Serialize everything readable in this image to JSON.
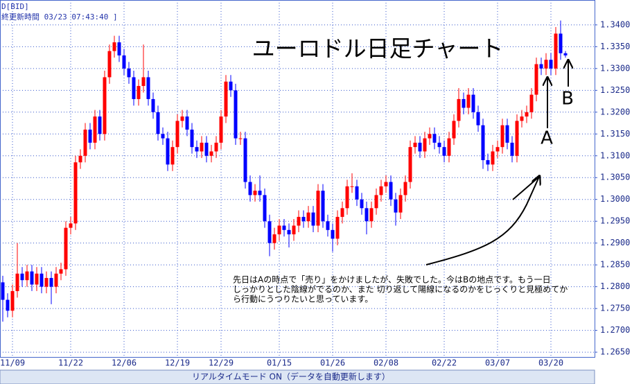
{
  "chart_data": {
    "type": "candlestick",
    "header": "D[BID]",
    "timestamp": "終更新時間 03/23 07:43:40 ]",
    "title": "ユーロドル日足チャート",
    "annotation_lines": [
      "先日はAの時点で「売り」をかけましたが、失敗でした。今はBの地点です。もう一日",
      "しっかりとした陰線がでるのか、また 切り返して陽線になるのかをじっくりと見極めてか",
      "ら行動にうつりたいと思っています。"
    ],
    "marker_a": "A",
    "marker_b": "B",
    "footer": "リアルタイムモード ON（データを自動更新します）",
    "up_color": "#ff0000",
    "down_color": "#0000ff",
    "grid": true,
    "ylim": [
      1.2639,
      1.3457
    ],
    "yticks": [
      {
        "value": 1.265,
        "label": "1.2650"
      },
      {
        "value": 1.27,
        "label": "1.2700"
      },
      {
        "value": 1.275,
        "label": "1.2750"
      },
      {
        "value": 1.28,
        "label": "1.2800"
      },
      {
        "value": 1.285,
        "label": "1.2850"
      },
      {
        "value": 1.29,
        "label": "1.2900"
      },
      {
        "value": 1.295,
        "label": "1.2950"
      },
      {
        "value": 1.3,
        "label": "1.3000"
      },
      {
        "value": 1.305,
        "label": "1.3050"
      },
      {
        "value": 1.31,
        "label": "1.3100"
      },
      {
        "value": 1.315,
        "label": "1.3150"
      },
      {
        "value": 1.32,
        "label": "1.3200"
      },
      {
        "value": 1.325,
        "label": "1.3250"
      },
      {
        "value": 1.33,
        "label": "1.3300"
      },
      {
        "value": 1.335,
        "label": "1.3350"
      },
      {
        "value": 1.34,
        "label": "1.3400"
      }
    ],
    "categories": [
      null,
      null,
      "11/09",
      null,
      null,
      null,
      null,
      null,
      null,
      null,
      null,
      null,
      null,
      null,
      "11/22",
      null,
      null,
      null,
      null,
      null,
      null,
      null,
      null,
      null,
      null,
      "12/06",
      null,
      null,
      null,
      null,
      null,
      null,
      null,
      null,
      null,
      null,
      "12/19",
      null,
      null,
      null,
      null,
      null,
      null,
      null,
      null,
      "12/29",
      null,
      null,
      null,
      null,
      null,
      null,
      null,
      null,
      null,
      null,
      null,
      "01/15",
      null,
      null,
      null,
      null,
      null,
      null,
      null,
      null,
      null,
      null,
      "01/26",
      null,
      null,
      null,
      null,
      null,
      null,
      null,
      null,
      null,
      null,
      "02/08",
      null,
      null,
      null,
      null,
      null,
      null,
      null,
      null,
      null,
      null,
      null,
      "02/22",
      null,
      null,
      null,
      null,
      null,
      null,
      null,
      null,
      null,
      null,
      "03/07",
      null,
      null,
      null,
      null,
      null,
      null,
      null,
      null,
      null,
      null,
      "03/20",
      null,
      null,
      null
    ],
    "open": [
      1.281,
      1.277,
      1.2745,
      1.279,
      1.283,
      1.2815,
      1.2835,
      1.2805,
      1.283,
      1.28,
      1.282,
      1.28,
      1.283,
      1.284,
      1.2935,
      1.2945,
      1.3085,
      1.31,
      1.316,
      1.313,
      1.319,
      1.315,
      1.328,
      1.334,
      1.336,
      1.333,
      1.33,
      1.328,
      1.323,
      1.326,
      1.328,
      1.323,
      1.32,
      1.315,
      1.314,
      1.308,
      1.312,
      1.318,
      1.319,
      1.316,
      1.312,
      1.311,
      1.313,
      1.31,
      1.311,
      1.313,
      1.319,
      1.327,
      1.325,
      1.314,
      1.314,
      1.304,
      1.301,
      1.302,
      1.301,
      1.295,
      1.29,
      1.292,
      1.294,
      1.293,
      1.292,
      1.294,
      1.296,
      1.295,
      1.297,
      1.294,
      1.302,
      1.295,
      1.293,
      1.291,
      1.296,
      1.298,
      1.303,
      1.303,
      1.3,
      1.298,
      1.295,
      1.298,
      1.301,
      1.303,
      1.304,
      1.3,
      1.297,
      1.301,
      1.304,
      1.312,
      1.313,
      1.311,
      1.314,
      1.315,
      1.313,
      1.312,
      1.31,
      1.314,
      1.318,
      1.323,
      1.321,
      1.324,
      1.32,
      1.317,
      1.309,
      1.308,
      1.311,
      1.312,
      1.317,
      1.313,
      1.31,
      1.318,
      1.319,
      1.32,
      1.324,
      1.331,
      1.33,
      1.332,
      1.33,
      1.338,
      1.3335
    ],
    "high": [
      1.2825,
      1.2785,
      1.2805,
      1.29,
      1.2845,
      1.285,
      1.285,
      1.2845,
      1.2845,
      1.2835,
      1.2835,
      1.2845,
      1.2855,
      1.295,
      1.296,
      1.31,
      1.3115,
      1.3175,
      1.3175,
      1.3205,
      1.3205,
      1.3295,
      1.3355,
      1.3375,
      1.3375,
      1.3345,
      1.3315,
      1.3295,
      1.3275,
      1.3355,
      1.3295,
      1.3245,
      1.3215,
      1.3165,
      1.3155,
      1.3135,
      1.3195,
      1.3205,
      1.3205,
      1.3175,
      1.3135,
      1.3145,
      1.3145,
      1.3125,
      1.3145,
      1.3205,
      1.3285,
      1.3285,
      1.3265,
      1.3155,
      1.3155,
      1.3055,
      1.3035,
      1.3055,
      1.3025,
      1.2965,
      1.2935,
      1.2955,
      1.2955,
      1.2945,
      1.2955,
      1.2975,
      1.2975,
      1.2985,
      1.2985,
      1.3035,
      1.3035,
      1.2965,
      1.2945,
      1.2975,
      1.2995,
      1.3045,
      1.306,
      1.3045,
      1.3015,
      1.2995,
      1.2995,
      1.3025,
      1.3045,
      1.3055,
      1.3055,
      1.3015,
      1.3025,
      1.3055,
      1.3135,
      1.3145,
      1.3145,
      1.3155,
      1.3165,
      1.3165,
      1.3145,
      1.3135,
      1.3155,
      1.3195,
      1.3255,
      1.3245,
      1.3255,
      1.3255,
      1.3215,
      1.3185,
      1.3105,
      1.3125,
      1.3135,
      1.3185,
      1.3185,
      1.3145,
      1.3195,
      1.3205,
      1.3215,
      1.3255,
      1.3325,
      1.3325,
      1.3335,
      1.3335,
      1.3395,
      1.341,
      1.334
    ],
    "low": [
      1.272,
      1.273,
      1.273,
      1.2775,
      1.28,
      1.28,
      1.279,
      1.279,
      1.2785,
      1.2785,
      1.276,
      1.2785,
      1.2815,
      1.2825,
      1.292,
      1.293,
      1.307,
      1.3085,
      1.3115,
      1.3115,
      1.3135,
      1.3135,
      1.3265,
      1.3325,
      1.3315,
      1.3285,
      1.3265,
      1.3215,
      1.3215,
      1.3245,
      1.3215,
      1.3185,
      1.3135,
      1.3125,
      1.3065,
      1.3065,
      1.3105,
      1.3165,
      1.3145,
      1.3105,
      1.3095,
      1.3095,
      1.3085,
      1.3085,
      1.3095,
      1.3115,
      1.3175,
      1.3235,
      1.3125,
      1.3125,
      1.3025,
      1.2995,
      1.2995,
      1.2995,
      1.2935,
      1.287,
      1.2885,
      1.2905,
      1.2915,
      1.289,
      1.2905,
      1.2925,
      1.2935,
      1.2935,
      1.2925,
      1.2925,
      1.2935,
      1.2915,
      1.288,
      1.2895,
      1.2945,
      1.2965,
      1.3015,
      1.2985,
      1.2965,
      1.292,
      1.2935,
      1.2965,
      1.2995,
      1.3015,
      1.2985,
      1.294,
      1.2955,
      1.2995,
      1.3025,
      1.3105,
      1.3095,
      1.3095,
      1.3125,
      1.3115,
      1.3105,
      1.3085,
      1.3085,
      1.3125,
      1.3165,
      1.3195,
      1.3195,
      1.3185,
      1.3155,
      1.307,
      1.3065,
      1.3065,
      1.3095,
      1.3105,
      1.3115,
      1.3085,
      1.3085,
      1.3165,
      1.3175,
      1.3185,
      1.3225,
      1.3285,
      1.3285,
      1.3285,
      1.3285,
      1.332,
      1.3325
    ],
    "close": [
      1.277,
      1.2745,
      1.279,
      1.283,
      1.2815,
      1.2835,
      1.2805,
      1.283,
      1.28,
      1.282,
      1.28,
      1.283,
      1.284,
      1.2935,
      1.2945,
      1.3085,
      1.31,
      1.316,
      1.313,
      1.319,
      1.315,
      1.328,
      1.334,
      1.336,
      1.333,
      1.33,
      1.328,
      1.323,
      1.326,
      1.328,
      1.323,
      1.32,
      1.315,
      1.314,
      1.308,
      1.312,
      1.318,
      1.319,
      1.316,
      1.312,
      1.311,
      1.313,
      1.31,
      1.311,
      1.313,
      1.319,
      1.327,
      1.325,
      1.314,
      1.314,
      1.304,
      1.301,
      1.302,
      1.301,
      1.295,
      1.29,
      1.292,
      1.294,
      1.293,
      1.292,
      1.294,
      1.296,
      1.295,
      1.297,
      1.294,
      1.302,
      1.295,
      1.293,
      1.291,
      1.296,
      1.298,
      1.303,
      1.303,
      1.3,
      1.298,
      1.295,
      1.298,
      1.301,
      1.303,
      1.304,
      1.3,
      1.297,
      1.301,
      1.304,
      1.312,
      1.313,
      1.311,
      1.314,
      1.315,
      1.313,
      1.312,
      1.31,
      1.314,
      1.318,
      1.323,
      1.321,
      1.324,
      1.32,
      1.317,
      1.309,
      1.308,
      1.311,
      1.312,
      1.317,
      1.313,
      1.31,
      1.318,
      1.319,
      1.32,
      1.324,
      1.331,
      1.33,
      1.332,
      1.33,
      1.338,
      1.3335,
      1.333
    ]
  }
}
